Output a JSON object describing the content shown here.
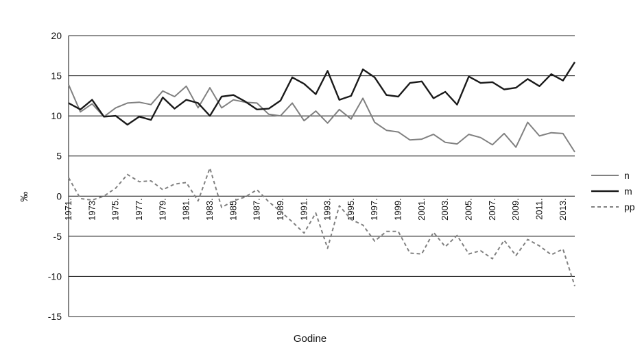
{
  "chart_data": {
    "type": "line",
    "xlabel": "Godine",
    "ylabel": "‰",
    "ylim": [
      -15,
      20
    ],
    "yticks": [
      20,
      15,
      10,
      5,
      0,
      -5,
      -10,
      -15
    ],
    "x": [
      1971,
      1972,
      1973,
      1974,
      1975,
      1976,
      1977,
      1978,
      1979,
      1980,
      1981,
      1982,
      1983,
      1984,
      1985,
      1986,
      1987,
      1988,
      1989,
      1990,
      1991,
      1992,
      1993,
      1994,
      1995,
      1996,
      1997,
      1998,
      1999,
      2000,
      2001,
      2002,
      2003,
      2004,
      2005,
      2006,
      2007,
      2008,
      2009,
      2010,
      2011,
      2012,
      2013,
      2014
    ],
    "xtick_labels": [
      "1971.",
      "1973.",
      "1975.",
      "1977.",
      "1979.",
      "1981.",
      "1983.",
      "1985.",
      "1987.",
      "1989.",
      "1991.",
      "1993.",
      "1995.",
      "1997.",
      "1999.",
      "2001.",
      "2003.",
      "2005.",
      "2007.",
      "2009.",
      "2011.",
      "2013."
    ],
    "xtick_years": [
      1971,
      1973,
      1975,
      1977,
      1979,
      1981,
      1983,
      1985,
      1987,
      1989,
      1991,
      1993,
      1995,
      1997,
      1999,
      2001,
      2003,
      2005,
      2007,
      2009,
      2011,
      2013
    ],
    "grid": true,
    "legend": "right",
    "series": [
      {
        "name": "n",
        "color": "#808080",
        "dash": "solid",
        "values": [
          13.9,
          10.5,
          11.5,
          9.9,
          11.0,
          11.6,
          11.7,
          11.4,
          13.1,
          12.4,
          13.7,
          11.0,
          13.5,
          11.0,
          12.0,
          11.7,
          11.6,
          10.2,
          10.0,
          11.6,
          9.4,
          10.6,
          9.1,
          10.8,
          9.6,
          12.2,
          9.2,
          8.2,
          8.0,
          7.0,
          7.1,
          7.7,
          6.7,
          6.5,
          7.7,
          7.3,
          6.4,
          7.8,
          6.1,
          9.2,
          7.5,
          7.9,
          7.8,
          5.5
        ]
      },
      {
        "name": "m",
        "color": "#1a1a1a",
        "dash": "solid",
        "values": [
          11.6,
          10.8,
          12.0,
          9.9,
          10.0,
          8.9,
          9.9,
          9.5,
          12.3,
          10.9,
          12.0,
          11.6,
          10.0,
          12.4,
          12.6,
          11.8,
          10.8,
          10.9,
          11.9,
          14.8,
          14.0,
          12.7,
          15.6,
          12.0,
          12.5,
          15.8,
          14.8,
          12.6,
          12.4,
          14.1,
          14.3,
          12.2,
          13.0,
          11.4,
          14.9,
          14.1,
          14.2,
          13.3,
          13.5,
          14.6,
          13.7,
          15.2,
          14.4,
          16.7
        ]
      },
      {
        "name": "pp",
        "color": "#808080",
        "dash": "dashed",
        "values": [
          2.3,
          -0.3,
          -0.5,
          0.0,
          1.0,
          2.7,
          1.8,
          1.9,
          0.8,
          1.5,
          1.7,
          -0.6,
          3.5,
          -1.4,
          -0.6,
          -0.1,
          0.8,
          -0.7,
          -1.9,
          -3.2,
          -4.6,
          -2.1,
          -6.5,
          -1.2,
          -2.9,
          -3.6,
          -5.6,
          -4.4,
          -4.4,
          -7.1,
          -7.2,
          -4.5,
          -6.3,
          -4.9,
          -7.2,
          -6.8,
          -7.8,
          -5.5,
          -7.4,
          -5.4,
          -6.2,
          -7.3,
          -6.6,
          -11.2
        ]
      }
    ]
  }
}
